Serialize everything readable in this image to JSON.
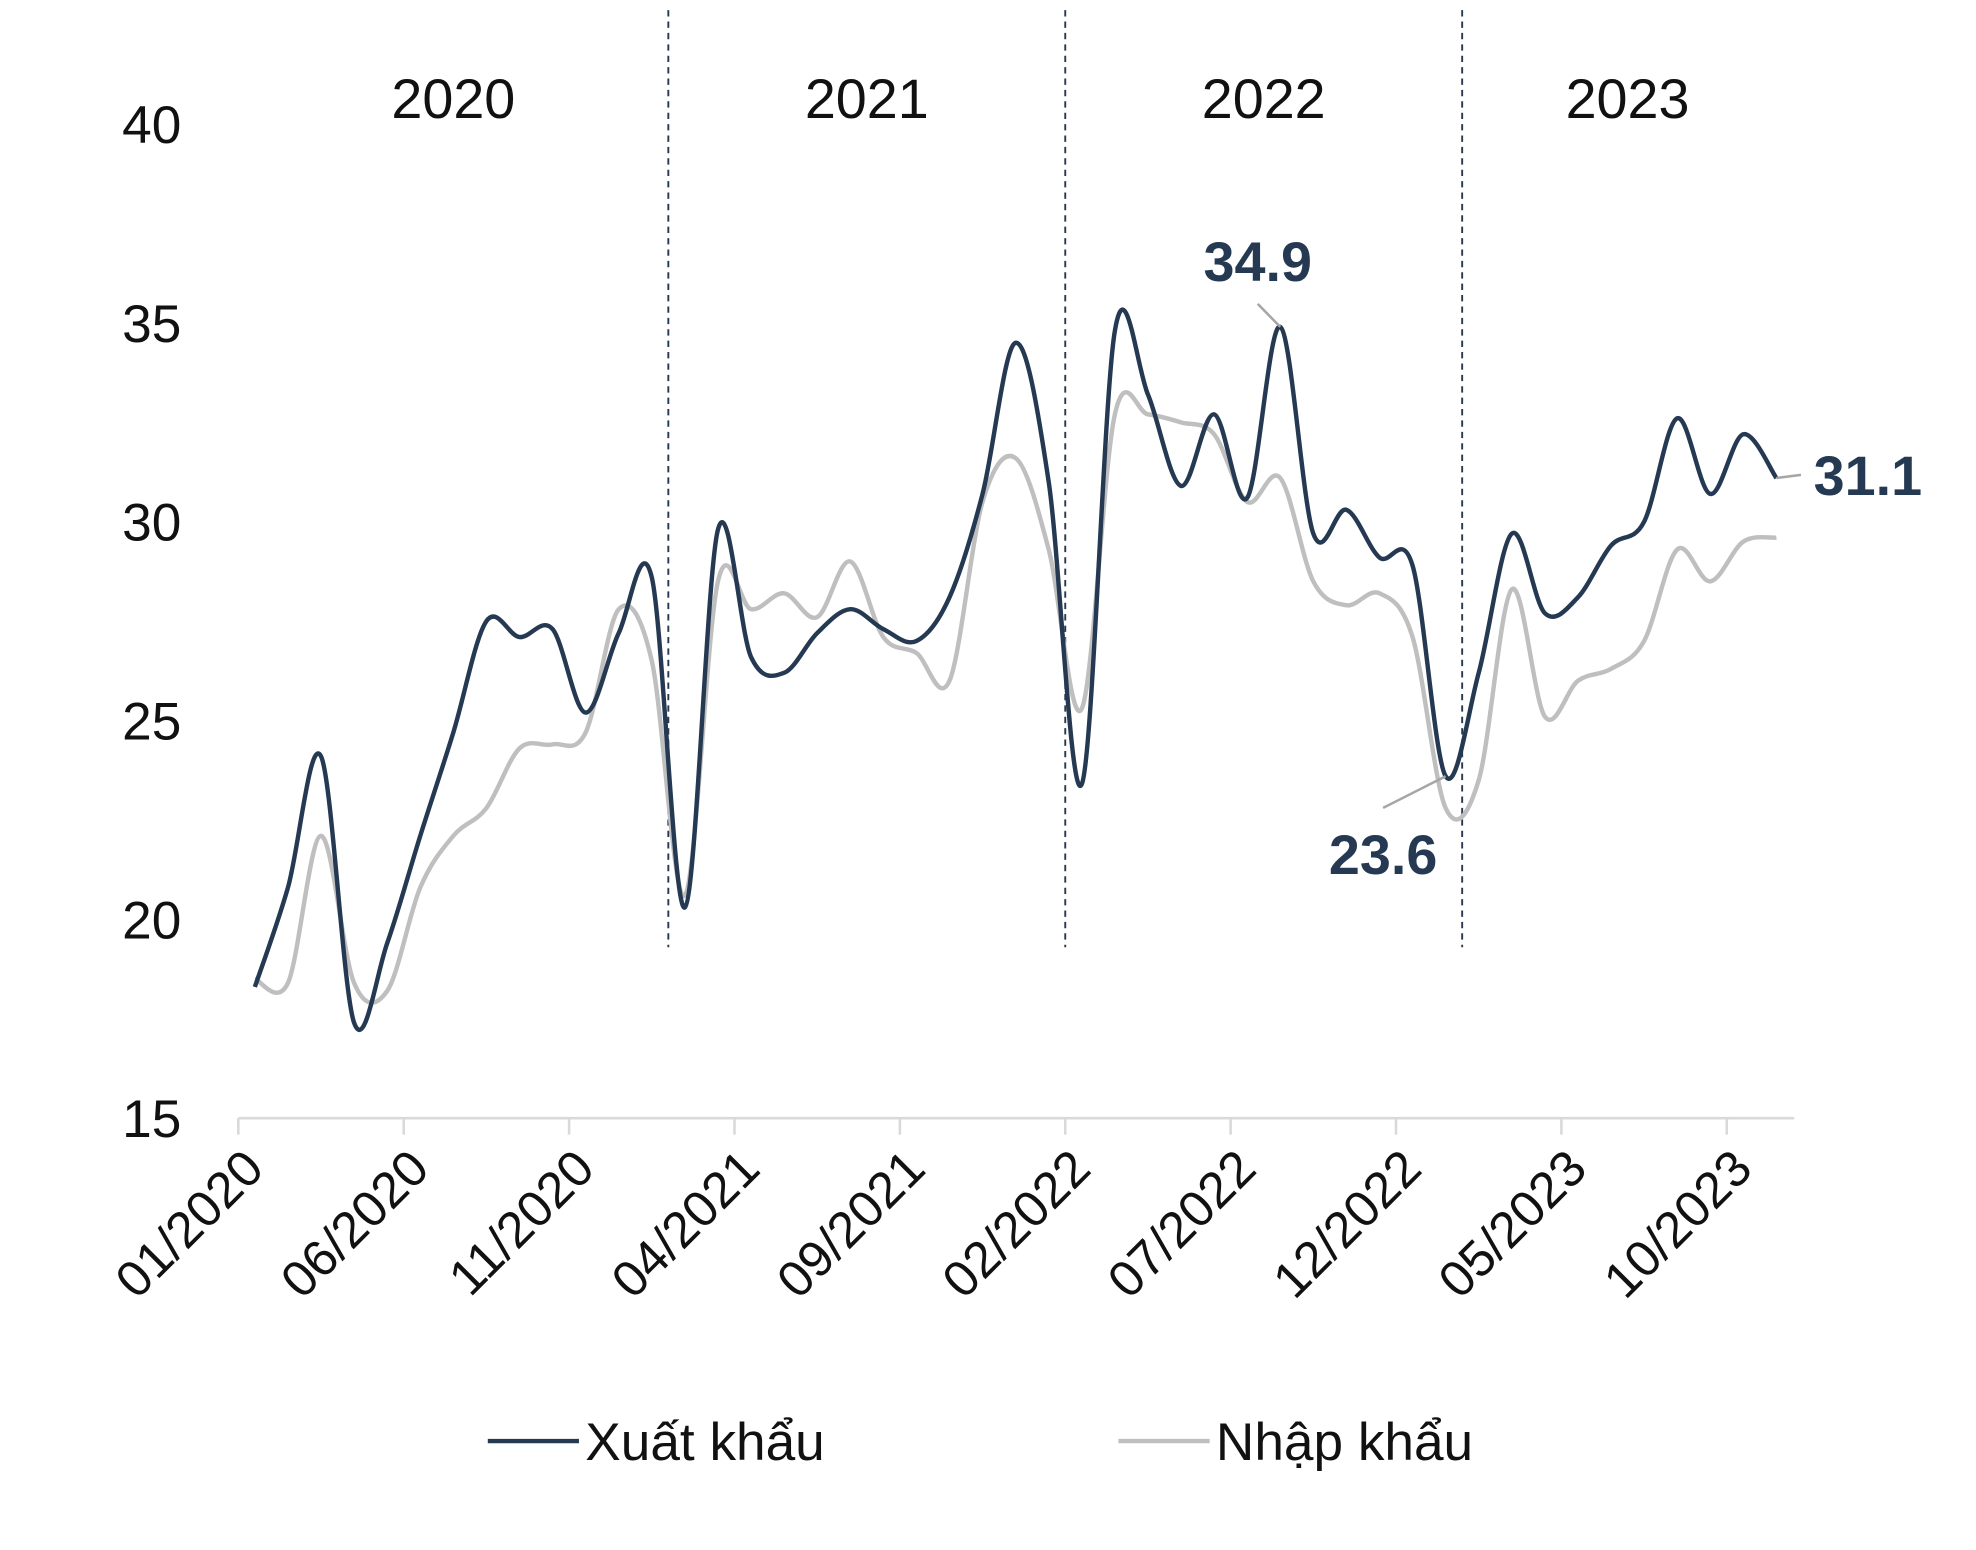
{
  "chart_data": {
    "type": "line",
    "categories": [
      "01/2020",
      null,
      null,
      null,
      null,
      "06/2020",
      null,
      null,
      null,
      null,
      "11/2020",
      null,
      null,
      null,
      null,
      "04/2021",
      null,
      null,
      null,
      null,
      "09/2021",
      null,
      null,
      null,
      null,
      "02/2022",
      null,
      null,
      null,
      null,
      "07/2022",
      null,
      null,
      null,
      null,
      "12/2022",
      null,
      null,
      null,
      null,
      "05/2023",
      null,
      null,
      null,
      null,
      "10/2023",
      null
    ],
    "year_labels": [
      "2020",
      "2021",
      "2022",
      "2023"
    ],
    "series": [
      {
        "name": "Xuất khẩu",
        "color": "#253a52",
        "values": [
          18.3,
          20.8,
          24.1,
          17.4,
          19.4,
          22.1,
          24.7,
          27.5,
          27.1,
          27.3,
          25.2,
          27.2,
          28.6,
          20.3,
          29.8,
          26.6,
          26.2,
          27.2,
          27.8,
          27.3,
          27.0,
          28.1,
          30.7,
          34.5,
          31.0,
          23.4,
          34.8,
          33.2,
          30.9,
          32.7,
          30.6,
          34.9,
          29.7,
          30.3,
          29.1,
          28.9,
          23.6,
          26.2,
          29.7,
          27.7,
          28.1,
          29.4,
          30.0,
          32.6,
          30.7,
          32.2,
          31.1
        ]
      },
      {
        "name": "Nhập khẩu",
        "color": "#bfbfbf",
        "values": [
          18.5,
          18.4,
          22.1,
          18.4,
          18.2,
          20.8,
          22.1,
          22.8,
          24.3,
          24.4,
          24.7,
          27.8,
          26.5,
          20.6,
          28.5,
          27.8,
          28.2,
          27.6,
          29.0,
          27.1,
          26.7,
          26.0,
          30.5,
          31.6,
          29.3,
          25.3,
          32.7,
          32.7,
          32.5,
          32.2,
          30.5,
          31.1,
          28.5,
          27.9,
          28.2,
          27.1,
          22.8,
          23.5,
          28.3,
          25.1,
          26.0,
          26.3,
          27.0,
          29.3,
          28.5,
          29.5,
          29.6
        ]
      }
    ],
    "ylim": [
      15,
      40
    ],
    "yticks": [
      15,
      20,
      25,
      30,
      35,
      40
    ],
    "grid": false,
    "legend": "bottom"
  }
}
